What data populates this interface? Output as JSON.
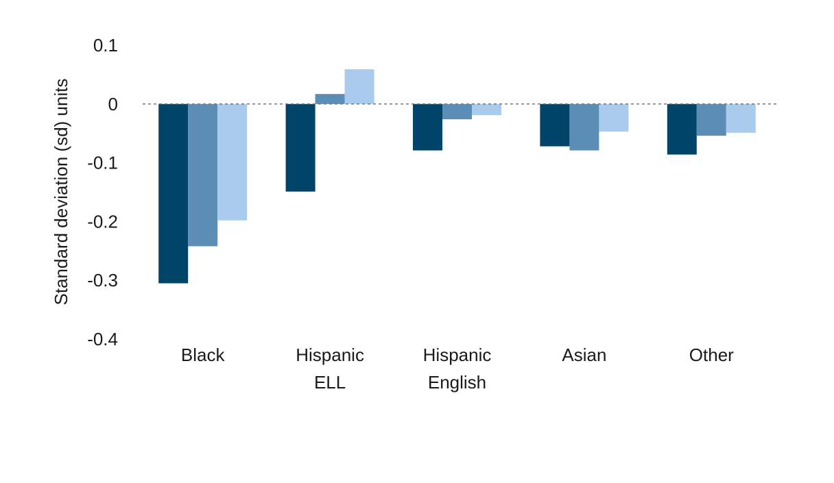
{
  "chart_data": {
    "type": "bar",
    "title": "",
    "xlabel": "",
    "ylabel": "Standard deviation (sd) units",
    "ylim": [
      -0.4,
      0.1
    ],
    "yticks": [
      0.1,
      0,
      -0.1,
      -0.2,
      -0.3,
      -0.4
    ],
    "ytick_labels": [
      "0.1",
      "0",
      "-0.1",
      "-0.2",
      "-0.3",
      "-0.4"
    ],
    "categories": [
      [
        "Black"
      ],
      [
        "Hispanic",
        "ELL"
      ],
      [
        "Hispanic",
        "English"
      ],
      [
        "Asian"
      ],
      [
        "Other"
      ]
    ],
    "series": [
      {
        "color": "#00446a",
        "values": [
          -0.305,
          -0.149,
          -0.079,
          -0.072,
          -0.086
        ]
      },
      {
        "color": "#5b8db5",
        "values": [
          -0.242,
          0.017,
          -0.026,
          -0.079,
          -0.054
        ]
      },
      {
        "color": "#a9cbee",
        "values": [
          -0.198,
          0.059,
          -0.019,
          -0.047,
          -0.049
        ]
      }
    ],
    "zero_line": "dashed",
    "grid": false,
    "legend": "none"
  }
}
